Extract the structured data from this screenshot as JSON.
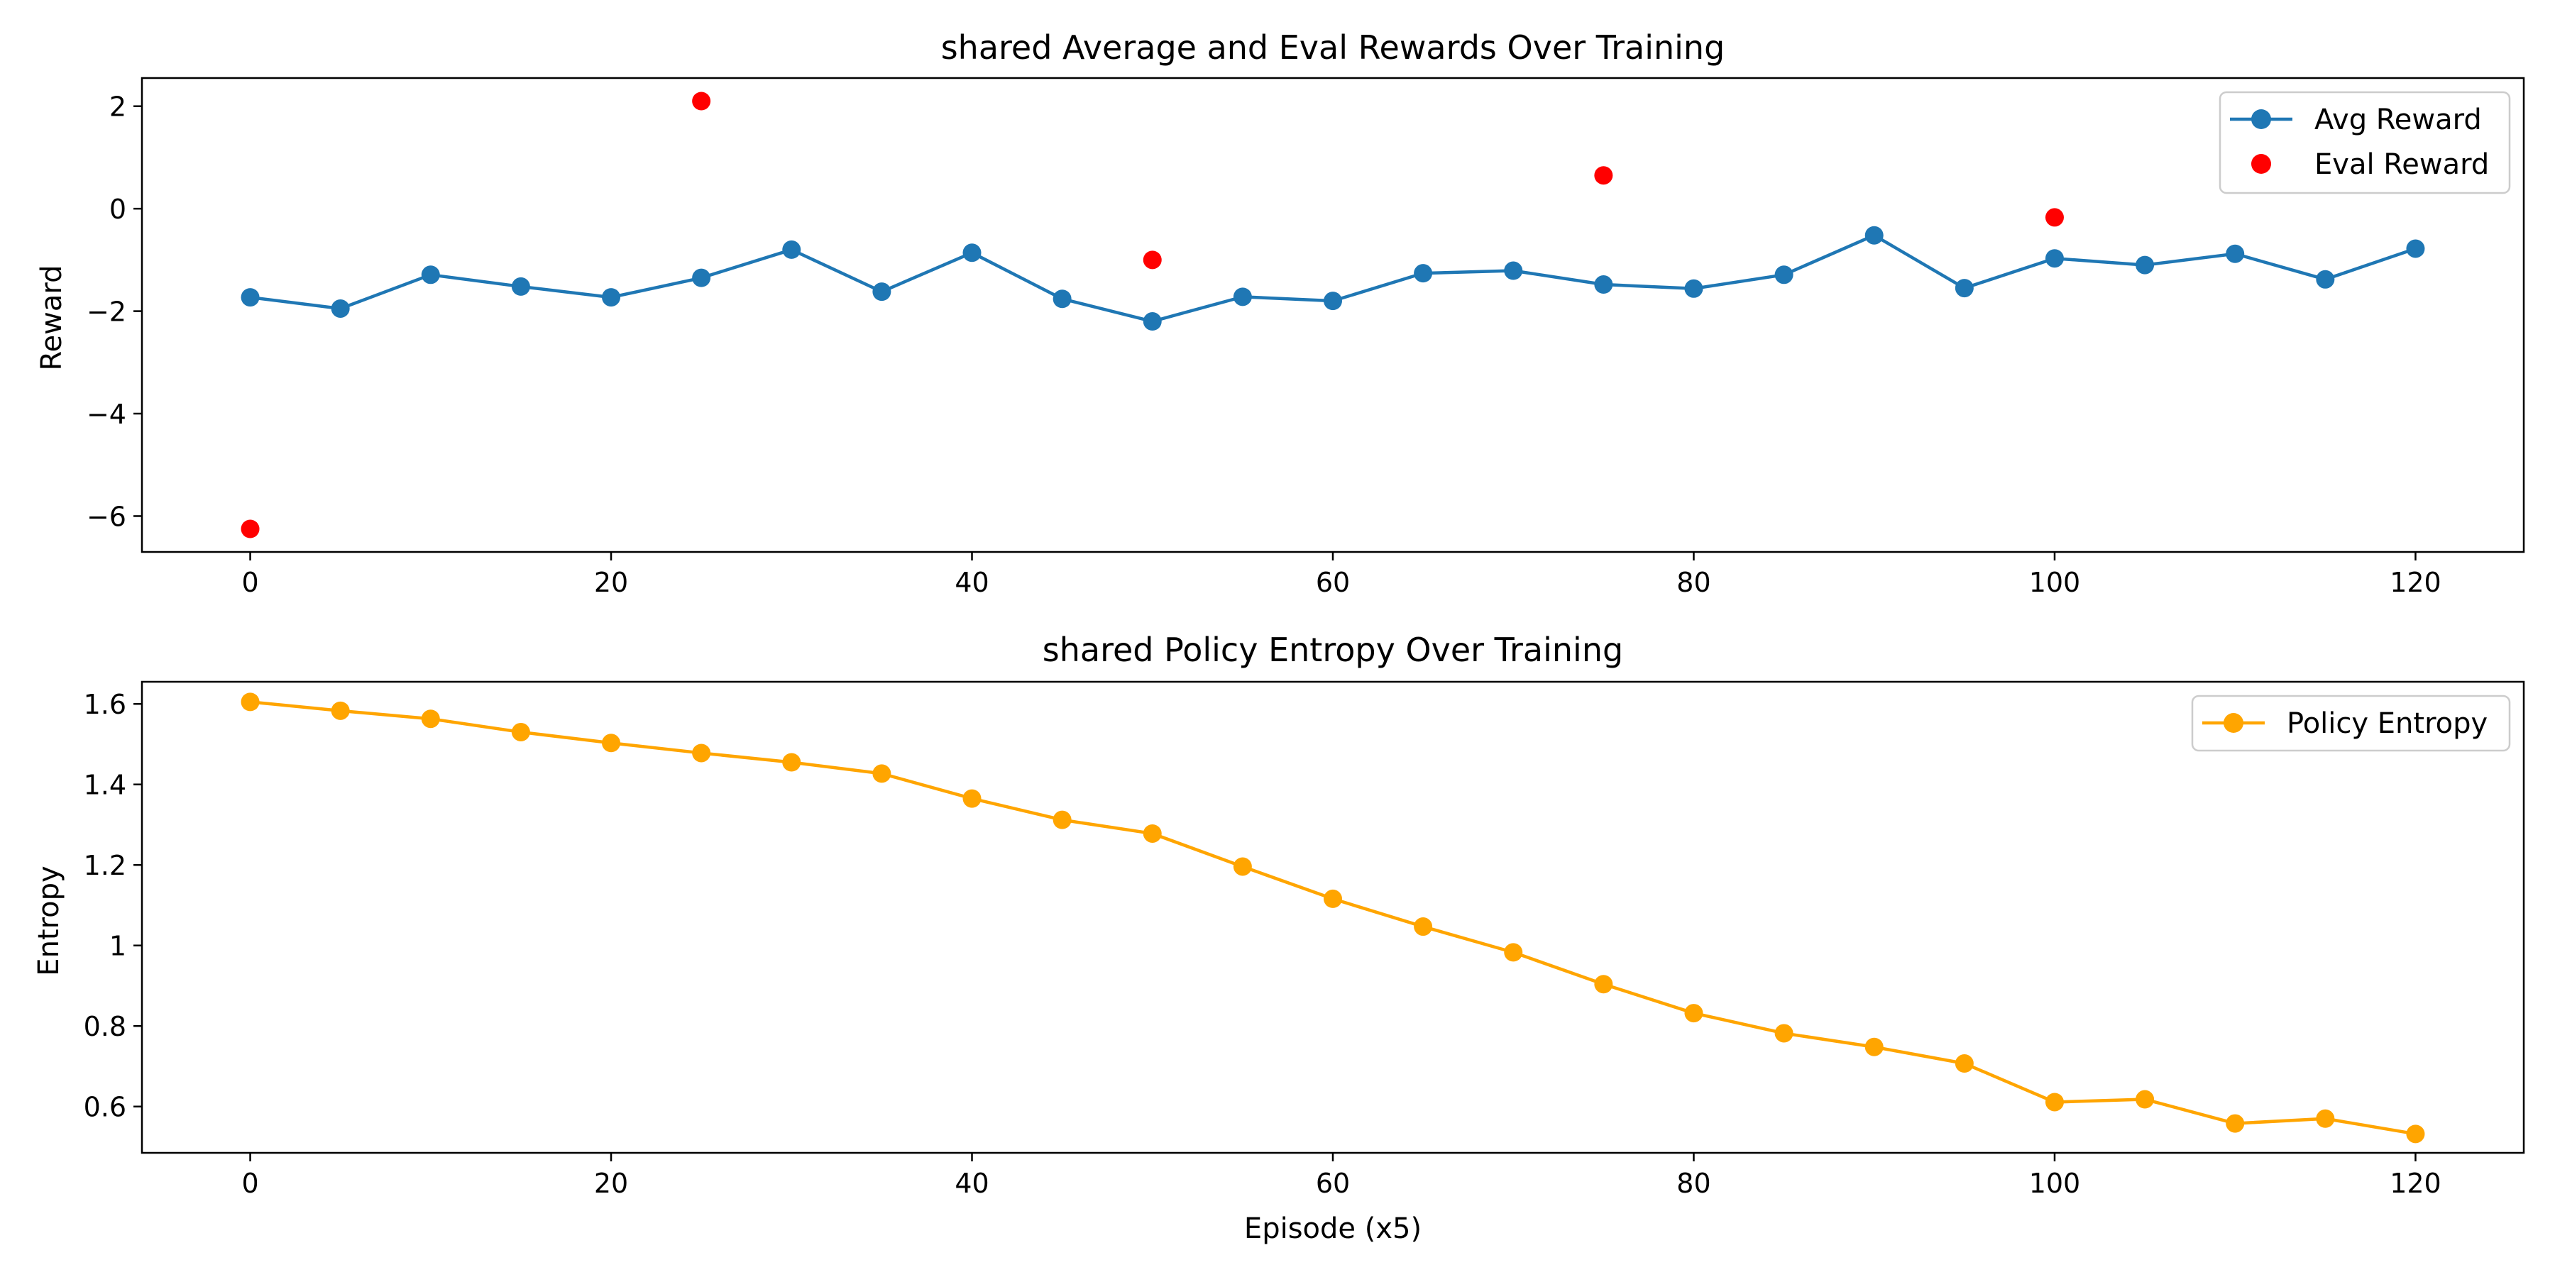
{
  "chart_data": [
    {
      "type": "line",
      "title": "shared Average and Eval Rewards Over Training",
      "xlabel": "",
      "ylabel": "Reward",
      "xlim": [
        -6,
        126
      ],
      "ylim": [
        -6.7,
        2.55
      ],
      "xticks": [
        0,
        20,
        40,
        60,
        80,
        100,
        120
      ],
      "yticks": [
        -6,
        -4,
        -2,
        0,
        2
      ],
      "grid": false,
      "legend_position": "top-right",
      "series": [
        {
          "name": "Avg Reward",
          "kind": "line-marker",
          "color": "#1f77b4",
          "x": [
            0,
            5,
            10,
            15,
            20,
            25,
            30,
            35,
            40,
            45,
            50,
            55,
            60,
            65,
            70,
            75,
            80,
            85,
            90,
            95,
            100,
            105,
            110,
            115,
            120
          ],
          "values": [
            -1.73,
            -1.95,
            -1.29,
            -1.52,
            -1.73,
            -1.35,
            -0.8,
            -1.62,
            -0.86,
            -1.76,
            -2.2,
            -1.72,
            -1.8,
            -1.26,
            -1.21,
            -1.48,
            -1.56,
            -1.29,
            -0.52,
            -1.55,
            -0.97,
            -1.1,
            -0.88,
            -1.38,
            -0.78
          ]
        },
        {
          "name": "Eval Reward",
          "kind": "scatter",
          "color": "#ff0000",
          "x": [
            0,
            25,
            50,
            75,
            100
          ],
          "values": [
            -6.25,
            2.1,
            -1.0,
            0.65,
            -0.17
          ]
        }
      ]
    },
    {
      "type": "line",
      "title": "shared Policy Entropy Over Training",
      "xlabel": "Episode (x5)",
      "ylabel": "Entropy",
      "xlim": [
        -6,
        126
      ],
      "ylim": [
        0.485,
        1.655
      ],
      "xticks": [
        0,
        20,
        40,
        60,
        80,
        100,
        120
      ],
      "yticks": [
        0.6,
        0.8,
        1.0,
        1.2,
        1.4,
        1.6
      ],
      "grid": false,
      "legend_position": "top-right",
      "series": [
        {
          "name": "Policy Entropy",
          "kind": "line-marker",
          "color": "#ffa500",
          "x": [
            0,
            5,
            10,
            15,
            20,
            25,
            30,
            35,
            40,
            45,
            50,
            55,
            60,
            65,
            70,
            75,
            80,
            85,
            90,
            95,
            100,
            105,
            110,
            115,
            120
          ],
          "values": [
            1.605,
            1.583,
            1.563,
            1.53,
            1.503,
            1.478,
            1.455,
            1.427,
            1.365,
            1.312,
            1.278,
            1.196,
            1.116,
            1.047,
            0.983,
            0.904,
            0.832,
            0.782,
            0.748,
            0.707,
            0.611,
            0.618,
            0.558,
            0.57,
            0.532
          ]
        }
      ]
    }
  ]
}
